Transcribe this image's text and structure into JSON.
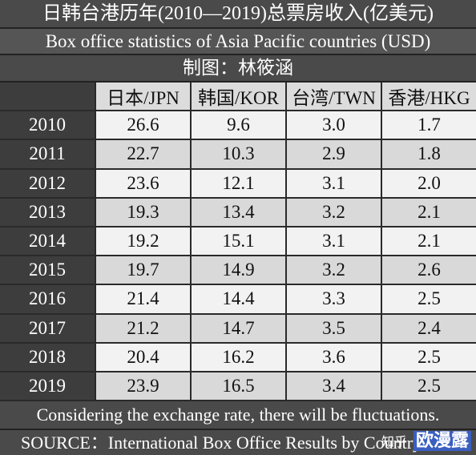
{
  "header": {
    "title": "日韩台港历年(2010—2019)总票房收入(亿美元)",
    "subtitle": "Box office statistics of Asia Pacific countries (USD)",
    "credit": "制图：林筱涵"
  },
  "table": {
    "columns": [
      "日本/JPN",
      "韩国/KOR",
      "台湾/TWN",
      "香港/HKG"
    ],
    "rows": [
      [
        "2010",
        "26.6",
        "9.6",
        "3.0",
        "1.7"
      ],
      [
        "2011",
        "22.7",
        "10.3",
        "2.9",
        "1.8"
      ],
      [
        "2012",
        "23.6",
        "12.1",
        "3.1",
        "2.0"
      ],
      [
        "2013",
        "19.3",
        "13.4",
        "3.2",
        "2.1"
      ],
      [
        "2014",
        "19.2",
        "15.1",
        "3.1",
        "2.1"
      ],
      [
        "2015",
        "19.7",
        "14.9",
        "3.2",
        "2.6"
      ],
      [
        "2016",
        "21.4",
        "14.4",
        "3.3",
        "2.5"
      ],
      [
        "2017",
        "21.2",
        "14.7",
        "3.5",
        "2.4"
      ],
      [
        "2018",
        "20.4",
        "16.2",
        "3.6",
        "2.5"
      ],
      [
        "2019",
        "23.9",
        "16.5",
        "3.4",
        "2.5"
      ]
    ]
  },
  "footer": {
    "note": "Considering the exchange rate, there will be fluctuations.",
    "source": "SOURCE：International Box Office Results by Country"
  },
  "watermark": {
    "site": "知乎",
    "author": "欧漫露"
  }
}
